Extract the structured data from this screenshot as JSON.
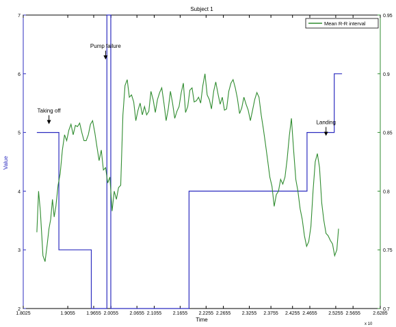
{
  "chart_data": {
    "type": "line",
    "title": "Subject 1",
    "xlabel": "Time",
    "x_exponent_label": "x 10",
    "ylabel_left": "Value",
    "ylabel_right": "",
    "xlim": [
      1.8025,
      2.6285
    ],
    "ylim_left": [
      2,
      7
    ],
    "ylim_right": [
      0.7,
      0.95
    ],
    "x_ticks": [
      1.8025,
      1.9055,
      1.9655,
      2.0055,
      2.0655,
      2.1055,
      2.1655,
      2.2255,
      2.2655,
      2.3255,
      2.3755,
      2.4255,
      2.4655,
      2.5255,
      2.5655,
      2.6285
    ],
    "x_tick_labels": [
      "1.8025",
      "1.9055",
      "1.9655",
      "2.0055",
      "2.0655",
      "2.1055",
      "2.1655",
      "2.2255",
      "2.2655",
      "2.3255",
      "2.3755",
      "2.4255",
      "2.4655",
      "2.5255",
      "2.5655",
      "2.6285"
    ],
    "y_ticks_left": [
      2,
      3,
      4,
      5,
      6,
      7
    ],
    "y_ticks_right": [
      0.7,
      0.75,
      0.8,
      0.85,
      0.9,
      0.95
    ],
    "legend": {
      "position": "top-right",
      "label": "Mean R-R interval",
      "color": "#2e8b2e"
    },
    "colors": {
      "left_axis": "#2b2bbf",
      "right_axis": "#2e8b2e",
      "step": "#2b2bbf",
      "line": "#2e8b2e"
    },
    "series": [
      {
        "name": "step",
        "axis": "left",
        "color": "#2b2bbf",
        "x": [
          1.834,
          1.885,
          1.885,
          1.96,
          1.96,
          1.996,
          1.996,
          2.005,
          2.005,
          2.018,
          2.018,
          2.186,
          2.186,
          2.459,
          2.459,
          2.522,
          2.522,
          2.54
        ],
        "y": [
          5,
          5,
          3,
          3,
          2,
          2,
          7,
          7,
          2,
          2,
          2,
          2,
          4,
          4,
          5,
          5,
          6,
          6
        ]
      },
      {
        "name": "Mean R-R interval",
        "axis": "right",
        "color": "#2e8b2e",
        "x": [
          1.834,
          1.838,
          1.842,
          1.848,
          1.853,
          1.858,
          1.862,
          1.866,
          1.87,
          1.874,
          1.878,
          1.883,
          1.888,
          1.893,
          1.898,
          1.903,
          1.908,
          1.913,
          1.918,
          1.923,
          1.928,
          1.933,
          1.938,
          1.943,
          1.948,
          1.953,
          1.958,
          1.963,
          1.968,
          1.973,
          1.978,
          1.983,
          1.988,
          1.993,
          1.998,
          2.003,
          2.008,
          2.013,
          2.018,
          2.023,
          2.028,
          2.033,
          2.038,
          2.043,
          2.048,
          2.053,
          2.058,
          2.063,
          2.068,
          2.073,
          2.078,
          2.083,
          2.088,
          2.093,
          2.098,
          2.103,
          2.108,
          2.113,
          2.118,
          2.123,
          2.128,
          2.133,
          2.138,
          2.143,
          2.148,
          2.153,
          2.158,
          2.163,
          2.168,
          2.173,
          2.178,
          2.183,
          2.188,
          2.193,
          2.198,
          2.203,
          2.208,
          2.213,
          2.218,
          2.223,
          2.228,
          2.233,
          2.238,
          2.243,
          2.248,
          2.253,
          2.258,
          2.263,
          2.268,
          2.273,
          2.278,
          2.283,
          2.288,
          2.293,
          2.298,
          2.303,
          2.308,
          2.313,
          2.318,
          2.323,
          2.328,
          2.333,
          2.338,
          2.343,
          2.348,
          2.353,
          2.358,
          2.363,
          2.368,
          2.373,
          2.378,
          2.383,
          2.388,
          2.393,
          2.398,
          2.403,
          2.408,
          2.413,
          2.418,
          2.423,
          2.428,
          2.433,
          2.438,
          2.443,
          2.448,
          2.453,
          2.458,
          2.463,
          2.468,
          2.473,
          2.478,
          2.483,
          2.488,
          2.493,
          2.498,
          2.503,
          2.508,
          2.513,
          2.518,
          2.523,
          2.528,
          2.532
        ],
        "y": [
          0.765,
          0.8,
          0.783,
          0.745,
          0.74,
          0.755,
          0.768,
          0.776,
          0.793,
          0.778,
          0.787,
          0.805,
          0.815,
          0.835,
          0.848,
          0.843,
          0.852,
          0.857,
          0.848,
          0.856,
          0.855,
          0.858,
          0.85,
          0.843,
          0.843,
          0.848,
          0.857,
          0.86,
          0.85,
          0.838,
          0.826,
          0.835,
          0.818,
          0.82,
          0.807,
          0.812,
          0.783,
          0.8,
          0.793,
          0.803,
          0.805,
          0.865,
          0.89,
          0.895,
          0.88,
          0.882,
          0.876,
          0.86,
          0.869,
          0.875,
          0.865,
          0.872,
          0.865,
          0.868,
          0.885,
          0.878,
          0.867,
          0.878,
          0.884,
          0.888,
          0.875,
          0.86,
          0.87,
          0.885,
          0.875,
          0.862,
          0.868,
          0.872,
          0.884,
          0.892,
          0.867,
          0.872,
          0.886,
          0.888,
          0.876,
          0.877,
          0.88,
          0.875,
          0.89,
          0.9,
          0.882,
          0.878,
          0.87,
          0.885,
          0.893,
          0.883,
          0.874,
          0.88,
          0.869,
          0.87,
          0.885,
          0.892,
          0.895,
          0.888,
          0.879,
          0.866,
          0.871,
          0.88,
          0.874,
          0.869,
          0.86,
          0.869,
          0.878,
          0.884,
          0.88,
          0.865,
          0.853,
          0.84,
          0.826,
          0.812,
          0.804,
          0.787,
          0.797,
          0.8,
          0.81,
          0.806,
          0.812,
          0.827,
          0.847,
          0.862,
          0.835,
          0.81,
          0.8,
          0.785,
          0.776,
          0.762,
          0.753,
          0.757,
          0.77,
          0.8,
          0.825,
          0.832,
          0.82,
          0.79,
          0.775,
          0.764,
          0.762,
          0.758,
          0.755,
          0.745,
          0.75,
          0.768
        ]
      }
    ],
    "annotations": [
      {
        "text": "Taking off",
        "x": 1.862,
        "y_left": 5.2
      },
      {
        "text": "Pump failure",
        "x": 1.993,
        "y_left": 6.3
      },
      {
        "text": "Landing",
        "x": 2.503,
        "y_left": 5.0
      }
    ],
    "grid": false
  }
}
